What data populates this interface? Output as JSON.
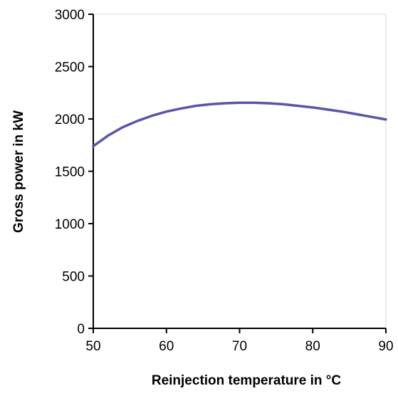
{
  "colors": {
    "line": "#5a55a8",
    "axis": "#000000",
    "plot_border": "#d8d8d8"
  },
  "chart_data": {
    "type": "line",
    "title": "",
    "xlabel": "Reinjection temperature in °C",
    "ylabel": "Gross power in kW",
    "xlim": [
      50,
      90
    ],
    "ylim": [
      0,
      3000
    ],
    "x_ticks": [
      50,
      60,
      70,
      80,
      90
    ],
    "y_ticks": [
      0,
      500,
      1000,
      1500,
      2000,
      2500,
      3000
    ],
    "x_tick_labels": [
      "50",
      "60",
      "70",
      "80",
      "90"
    ],
    "y_tick_labels": [
      "0",
      "500",
      "1000",
      "1500",
      "2000",
      "2500",
      "3000"
    ],
    "grid": false,
    "legend": "none",
    "series": [
      {
        "x": [
          50,
          52,
          54,
          56,
          58,
          60,
          62,
          64,
          66,
          68,
          70,
          72,
          74,
          76,
          78,
          80,
          82,
          84,
          86,
          88,
          90
        ],
        "y": [
          1740,
          1840,
          1920,
          1980,
          2030,
          2070,
          2100,
          2125,
          2140,
          2150,
          2155,
          2155,
          2150,
          2140,
          2125,
          2110,
          2090,
          2070,
          2045,
          2020,
          1995
        ]
      }
    ]
  }
}
